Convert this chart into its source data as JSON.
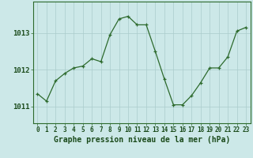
{
  "x": [
    0,
    1,
    2,
    3,
    4,
    5,
    6,
    7,
    8,
    9,
    10,
    11,
    12,
    13,
    14,
    15,
    16,
    17,
    18,
    19,
    20,
    21,
    22,
    23
  ],
  "y": [
    1011.35,
    1011.15,
    1011.7,
    1011.9,
    1012.05,
    1012.1,
    1012.3,
    1012.22,
    1012.95,
    1013.38,
    1013.45,
    1013.22,
    1013.22,
    1012.5,
    1011.75,
    1011.05,
    1011.05,
    1011.3,
    1011.65,
    1012.05,
    1012.05,
    1012.35,
    1013.05,
    1013.15
  ],
  "line_color": "#2d6a2d",
  "marker_color": "#2d6a2d",
  "bg_color": "#cce8e8",
  "grid_color": "#aacccc",
  "xlabel": "Graphe pression niveau de la mer (hPa)",
  "xlabel_color": "#1a4a1a",
  "ytick_labels": [
    "1011",
    "1012",
    "1013"
  ],
  "ytick_values": [
    1011,
    1012,
    1013
  ],
  "ylim": [
    1010.55,
    1013.85
  ],
  "xlim": [
    -0.5,
    23.5
  ],
  "axis_color": "#2d6a2d",
  "font_size_xlabel": 7.0,
  "font_size_yticks": 6.5,
  "font_size_xticks": 5.5
}
